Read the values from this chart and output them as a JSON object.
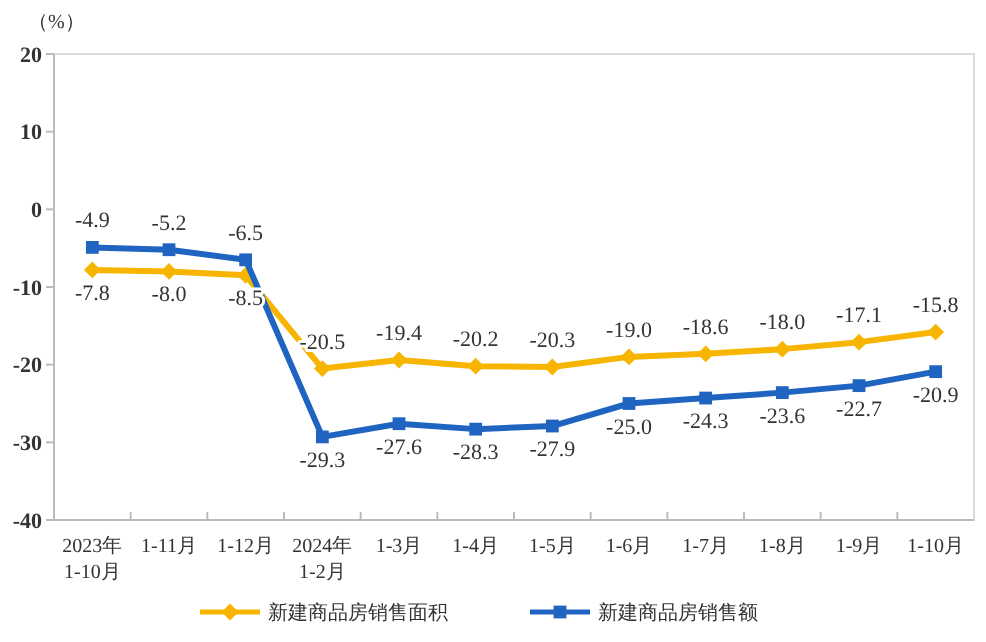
{
  "chart_data": {
    "type": "line",
    "ylabel": "（%）",
    "categories": [
      "2023年\n1-10月",
      "1-11月",
      "1-12月",
      "2024年\n1-2月",
      "1-3月",
      "1-4月",
      "1-5月",
      "1-6月",
      "1-7月",
      "1-8月",
      "1-9月",
      "1-10月"
    ],
    "series": [
      {
        "name": "新建商品房销售面积",
        "color": "#f7b500",
        "marker": "diamond",
        "values": [
          -7.8,
          -8.0,
          -8.5,
          -20.5,
          -19.4,
          -20.2,
          -20.3,
          -19.0,
          -18.6,
          -18.0,
          -17.1,
          -15.8
        ],
        "value_labels": [
          "-7.8",
          "-8.0",
          "-8.5",
          "-20.5",
          "-19.4",
          "-20.2",
          "-20.3",
          "-19.0",
          "-18.6",
          "-18.0",
          "-17.1",
          "-15.8"
        ]
      },
      {
        "name": "新建商品房销售额",
        "color": "#1f64c0",
        "marker": "square",
        "values": [
          -4.9,
          -5.2,
          -6.5,
          -29.3,
          -27.6,
          -28.3,
          -27.9,
          -25.0,
          -24.3,
          -23.6,
          -22.7,
          -20.9
        ],
        "value_labels": [
          "-4.9",
          "-5.2",
          "-6.5",
          "-29.3",
          "-27.6",
          "-28.3",
          "-27.9",
          "-25.0",
          "-24.3",
          "-23.6",
          "-22.7",
          "-20.9"
        ]
      }
    ],
    "ylim": [
      -40,
      20
    ],
    "yticks": [
      -40,
      -30,
      -20,
      -10,
      0,
      10,
      20
    ],
    "legend": "bottom",
    "grid": false
  }
}
